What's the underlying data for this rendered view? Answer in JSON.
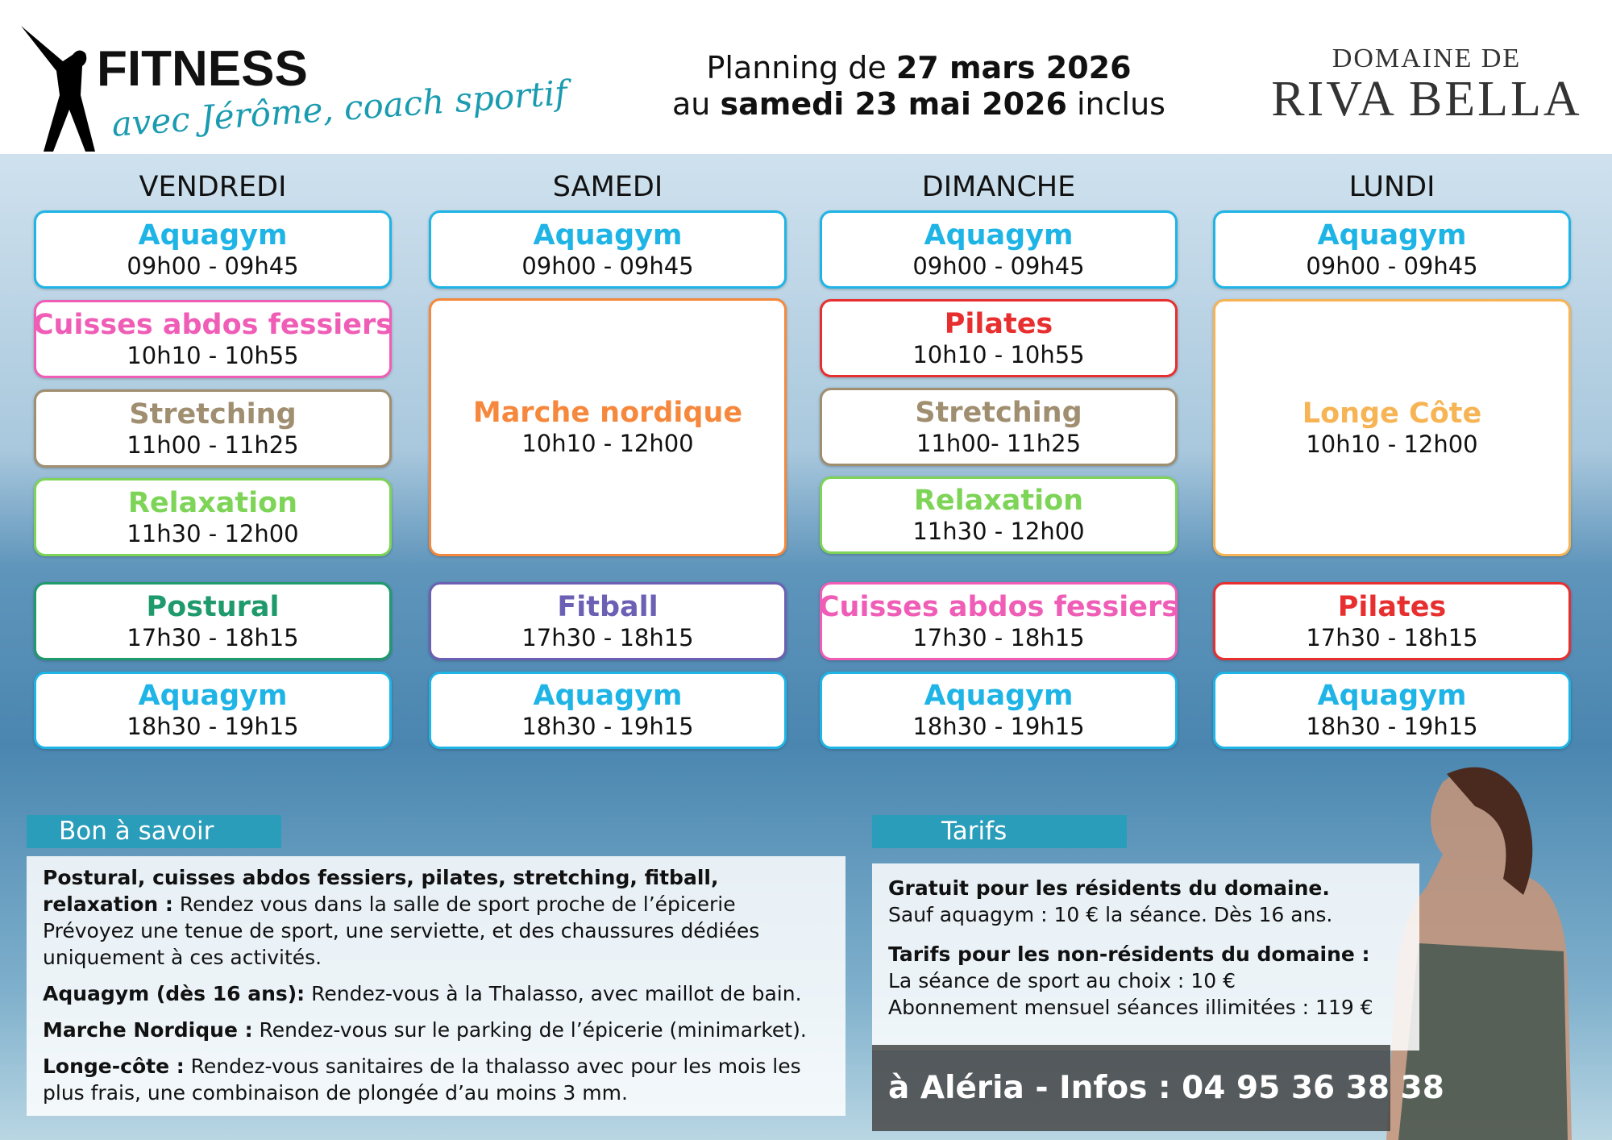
{
  "header": {
    "title": "FITNESS",
    "subtitle": "avec Jérôme, coach sportif",
    "planning": {
      "line1": {
        "prefix": "Planning de ",
        "bold": "27 mars 2026"
      },
      "line2": {
        "prefix": "au ",
        "bold": "samedi 23 mai 2026",
        "suffix": " inclus"
      }
    },
    "brand": {
      "line1": "DOMAINE DE",
      "line2": "RIVA BELLA"
    }
  },
  "days": [
    {
      "name": "VENDREDI",
      "sessions": [
        {
          "title": "Aquagym",
          "time": "09h00 - 09h45",
          "color": "#1fb4e6"
        },
        {
          "title": "Cuisses abdos fessiers",
          "time": "10h10 - 10h55",
          "color": "#ef5db6"
        },
        {
          "title": "Stretching",
          "time": "11h00 - 11h25",
          "color": "#a08e70"
        },
        {
          "title": "Relaxation",
          "time": "11h30 - 12h00",
          "color": "#7dd457"
        },
        {
          "title": "Postural",
          "time": "17h30 - 18h15",
          "color": "#1e9a6c"
        },
        {
          "title": "Aquagym",
          "time": "18h30 - 19h15",
          "color": "#1fb4e6"
        }
      ]
    },
    {
      "name": "SAMEDI",
      "sessions": [
        {
          "title": "Aquagym",
          "time": "09h00 - 09h45",
          "color": "#1fb4e6"
        },
        {
          "title": "Marche nordique",
          "time": "10h10 - 12h00",
          "color": "#f5883c"
        },
        {
          "title": "Fitball",
          "time": "17h30 - 18h15",
          "color": "#6c60b4"
        },
        {
          "title": "Aquagym",
          "time": "18h30 - 19h15",
          "color": "#1fb4e6"
        }
      ]
    },
    {
      "name": "DIMANCHE",
      "sessions": [
        {
          "title": "Aquagym",
          "time": "09h00 - 09h45",
          "color": "#1fb4e6"
        },
        {
          "title": "Pilates",
          "time": "10h10 - 10h55",
          "color": "#e82f2f"
        },
        {
          "title": "Stretching",
          "time": "11h00- 11h25",
          "color": "#a08e70"
        },
        {
          "title": "Relaxation",
          "time": "11h30 - 12h00",
          "color": "#7dd457"
        },
        {
          "title": "Cuisses abdos fessiers",
          "time": "17h30 - 18h15",
          "color": "#ef5db6"
        },
        {
          "title": "Aquagym",
          "time": "18h30 - 19h15",
          "color": "#1fb4e6"
        }
      ]
    },
    {
      "name": "LUNDI",
      "sessions": [
        {
          "title": "Aquagym",
          "time": "09h00 - 09h45",
          "color": "#1fb4e6"
        },
        {
          "title": "Longe Côte",
          "time": "10h10 - 12h00",
          "color": "#f6b454"
        },
        {
          "title": "Pilates",
          "time": "17h30 - 18h15",
          "color": "#e82f2f"
        },
        {
          "title": "Aquagym",
          "time": "18h30 - 19h15",
          "color": "#1fb4e6"
        }
      ]
    }
  ],
  "info": {
    "heading": "Bon à savoir",
    "paragraphs": [
      {
        "bold": "Postural, cuisses abdos fessiers, pilates, stretching, fitball, relaxation :",
        "text": " Rendez vous dans la salle de sport proche de l’épicerie Prévoyez une tenue de sport, une serviette, et des chaussures dédiées uniquement à ces activités."
      },
      {
        "bold": "Aquagym (dès 16 ans):",
        "text": " Rendez-vous à la Thalasso, avec maillot de bain."
      },
      {
        "bold": "Marche Nordique :",
        "text": " Rendez-vous sur le parking de l’épicerie (minimarket)."
      },
      {
        "bold": "Longe-côte :",
        "text": " Rendez-vous sanitaires de la thalasso avec pour les mois les plus frais, une combinaison de plongée d’au moins 3 mm."
      }
    ]
  },
  "tarifs": {
    "heading": "Tarifs",
    "groups": [
      {
        "bold": "Gratuit pour les résidents du domaine.",
        "lines": [
          "Sauf aquagym : 10 € la séance. Dès 16 ans."
        ]
      },
      {
        "bold": "Tarifs pour les non-résidents du domaine :",
        "lines": [
          "La séance de sport au choix : 10 €",
          "Abonnement mensuel séances illimitées : 119 €"
        ]
      }
    ],
    "contact": "à Aléria - Infos : 04 95 36 38 38"
  }
}
